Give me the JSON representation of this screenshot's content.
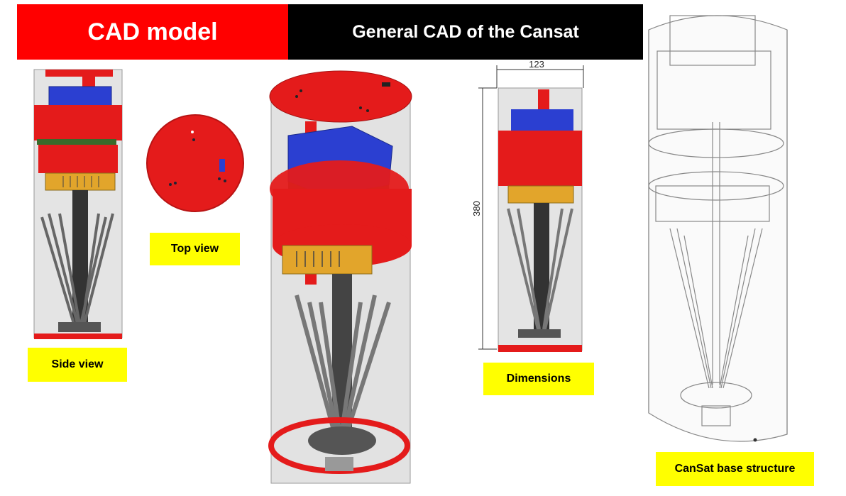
{
  "header": {
    "left_title": "CAD model",
    "right_title": "General CAD of the Cansat"
  },
  "labels": {
    "side_view": "Side view",
    "top_view": "Top view",
    "dimensions": "Dimensions",
    "base_structure": "CanSat base structure"
  },
  "dimensions": {
    "width": "123",
    "height": "380"
  },
  "colors": {
    "banner_red": "#ff0000",
    "banner_black": "#000000",
    "label_yellow": "#ffff00",
    "cansat_red": "#e41b1b",
    "battery_blue": "#2b3fd1",
    "board_gold": "#e2a52b",
    "board_green": "#3a6a2a"
  }
}
